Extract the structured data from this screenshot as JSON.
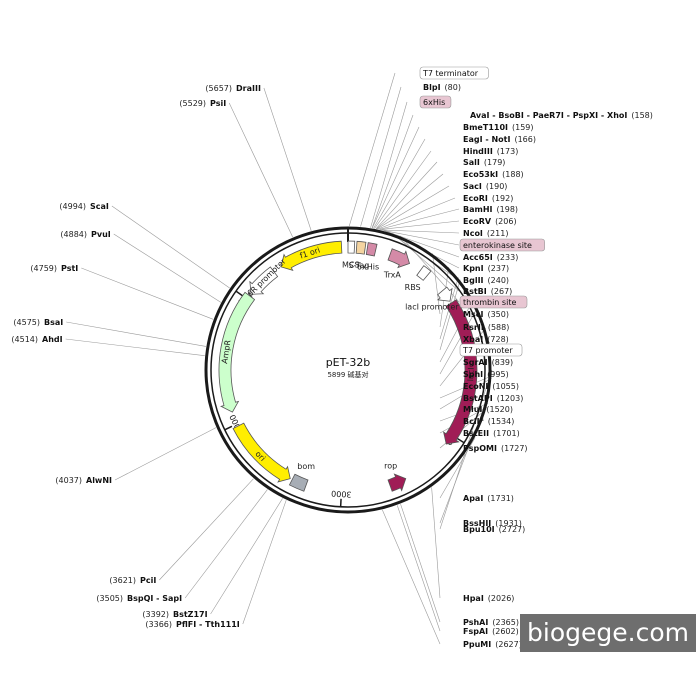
{
  "map": {
    "name": "pET-32b",
    "size_label": "5899 碱基对",
    "total_bp": 5899,
    "ticks": [
      {
        "bp": 1000,
        "label": "1000"
      },
      {
        "bp": 2000,
        "label": "2000"
      },
      {
        "bp": 3000,
        "label": "3000"
      },
      {
        "bp": 4000,
        "label": "4000"
      },
      {
        "bp": 5000,
        "label": "5000"
      }
    ]
  },
  "features": [
    {
      "label": "f1 ori",
      "color": "#ffee00",
      "dir": "ccw",
      "start_deg": -3,
      "end_deg": -33
    },
    {
      "label": "AmpR promoter",
      "color": "#ffffff",
      "dir": "ccw",
      "start_deg": -37,
      "end_deg": -52
    },
    {
      "label": "AmpR",
      "color": "#ccffcc",
      "dir": "ccw",
      "start_deg": -53,
      "end_deg": -110
    },
    {
      "label": "ori",
      "color": "#ffee00",
      "dir": "ccw",
      "start_deg": -152,
      "end_deg": -117
    },
    {
      "label": "rop",
      "color": "#a01d56",
      "dir": "ccw",
      "start_deg": 160,
      "end_deg": 152
    },
    {
      "label": "bom",
      "color": "#a7adb5",
      "dir": "none",
      "start_deg": -153,
      "end_deg": -160
    },
    {
      "label": "lacI",
      "color": "#a01d56",
      "dir": "cw",
      "start_deg": 57,
      "end_deg": 127
    },
    {
      "label": "lacI promoter",
      "color": "#ffffff",
      "dir": "cw",
      "start_deg": 50,
      "end_deg": 56
    },
    {
      "label": "TrxA",
      "color": "#d48aa7",
      "dir": "cw",
      "start_deg": 30,
      "end_deg": 20
    },
    {
      "label": "MCS",
      "color": "#ffffff",
      "dir": "none",
      "start_deg": 0,
      "end_deg": 3
    },
    {
      "label": "S-Tag",
      "color": "#f4d4a0",
      "dir": "none",
      "start_deg": 4,
      "end_deg": 8
    },
    {
      "label": "6xHis",
      "color": "#d48aa7",
      "dir": "none",
      "start_deg": 9,
      "end_deg": 13
    },
    {
      "label": "RBS",
      "color": "#ffffff",
      "dir": "none",
      "start_deg": 36,
      "end_deg": 40
    }
  ],
  "sites_right": [
    {
      "name": "T7 terminator",
      "pos": "",
      "type": "boxed"
    },
    {
      "name": "BlpI",
      "pos": "(80)",
      "type": "site"
    },
    {
      "name": "6xHis",
      "pos": "",
      "type": "feature"
    },
    {
      "name": "AvaI - BsoBI - PaeR7I - PspXI - XhoI",
      "pos": "(158)",
      "type": "site"
    },
    {
      "name": "BmeT110I",
      "pos": "(159)",
      "type": "site"
    },
    {
      "name": "EagI - NotI",
      "pos": "(166)",
      "type": "site"
    },
    {
      "name": "HindIII",
      "pos": "(173)",
      "type": "site"
    },
    {
      "name": "SalI",
      "pos": "(179)",
      "type": "site"
    },
    {
      "name": "Eco53kI",
      "pos": "(188)",
      "type": "site"
    },
    {
      "name": "SacI",
      "pos": "(190)",
      "type": "site"
    },
    {
      "name": "EcoRI",
      "pos": "(192)",
      "type": "site"
    },
    {
      "name": "BamHI",
      "pos": "(198)",
      "type": "site"
    },
    {
      "name": "EcoRV",
      "pos": "(206)",
      "type": "site"
    },
    {
      "name": "NcoI",
      "pos": "(211)",
      "type": "site"
    },
    {
      "name": "enterokinase site",
      "pos": "",
      "type": "feature"
    },
    {
      "name": "Acc65I",
      "pos": "(233)",
      "type": "site"
    },
    {
      "name": "KpnI",
      "pos": "(237)",
      "type": "site"
    },
    {
      "name": "BglII",
      "pos": "(240)",
      "type": "site"
    },
    {
      "name": "BstBI",
      "pos": "(267)",
      "type": "site"
    },
    {
      "name": "thrombin site",
      "pos": "",
      "type": "feature"
    },
    {
      "name": "MscI",
      "pos": "(350)",
      "type": "site"
    },
    {
      "name": "RsrII",
      "pos": "(588)",
      "type": "site"
    },
    {
      "name": "XbaI",
      "pos": "(728)",
      "type": "site"
    },
    {
      "name": "T7 promoter",
      "pos": "",
      "type": "boxed"
    },
    {
      "name": "SgrAI",
      "pos": "(839)",
      "type": "site"
    },
    {
      "name": "SphI",
      "pos": "(995)",
      "type": "site"
    },
    {
      "name": "EcoNI",
      "pos": "(1055)",
      "type": "site"
    },
    {
      "name": "BstAPI",
      "pos": "(1203)",
      "type": "site"
    },
    {
      "name": "MluI",
      "pos": "(1520)",
      "type": "site"
    },
    {
      "name": "BclI*",
      "pos": "(1534)",
      "type": "site_gray"
    },
    {
      "name": "BstEII",
      "pos": "(1701)",
      "type": "site"
    },
    {
      "name": "PspOMI",
      "pos": "(1727)",
      "type": "site"
    },
    {
      "name": "ApaI",
      "pos": "(1731)",
      "type": "site"
    },
    {
      "name": "BssHII",
      "pos": "(1931)",
      "type": "site"
    },
    {
      "name": "HpaI",
      "pos": "(2026)",
      "type": "site"
    },
    {
      "name": "PshAI",
      "pos": "(2365)",
      "type": "site"
    },
    {
      "name": "FspAI",
      "pos": "(2602)",
      "type": "site"
    },
    {
      "name": "PpuMI",
      "pos": "(2627)",
      "type": "site"
    },
    {
      "name": "Bpu10I",
      "pos": "(2727)",
      "type": "site"
    }
  ],
  "sites_left": [
    {
      "name": "DraIII",
      "pos": "(5657)",
      "type": "site"
    },
    {
      "name": "PsiI",
      "pos": "(5529)",
      "type": "site"
    },
    {
      "name": "ScaI",
      "pos": "(4994)",
      "type": "site"
    },
    {
      "name": "PvuI",
      "pos": "(4884)",
      "type": "site"
    },
    {
      "name": "PstI",
      "pos": "(4759)",
      "type": "site"
    },
    {
      "name": "BsaI",
      "pos": "(4575)",
      "type": "site"
    },
    {
      "name": "AhdI",
      "pos": "(4514)",
      "type": "site"
    },
    {
      "name": "AlwNI",
      "pos": "(4037)",
      "type": "site"
    },
    {
      "name": "PciI",
      "pos": "(3621)",
      "type": "site"
    },
    {
      "name": "BspQI - SapI",
      "pos": "(3505)",
      "type": "site"
    },
    {
      "name": "BstZ17I",
      "pos": "(3392)",
      "type": "site"
    },
    {
      "name": "PflFI - Tth111I",
      "pos": "(3366)",
      "type": "site"
    }
  ],
  "watermark": "biogege.com",
  "colors": {
    "ring": "#1a1a1a",
    "line": "#9a9a9a",
    "feature_box": "#e8c6d2",
    "watermark_bg": "#6e6e6e"
  }
}
